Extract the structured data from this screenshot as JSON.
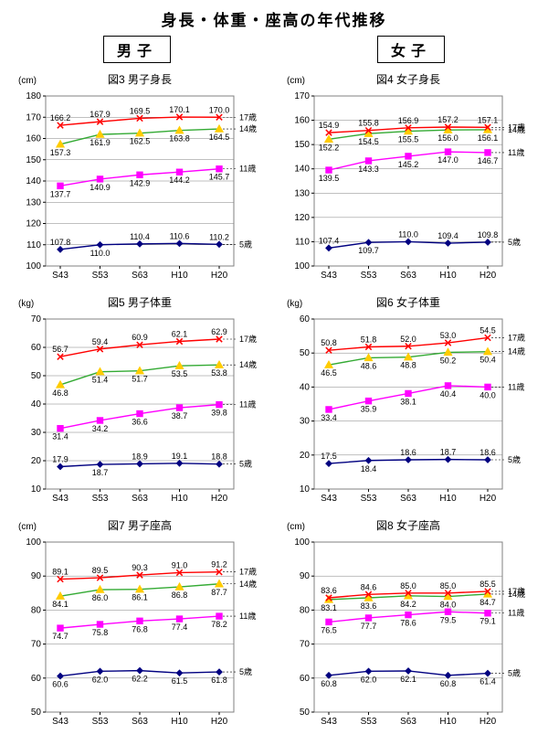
{
  "main_title": "身長・体重・座高の年代推移",
  "gender_labels": {
    "male": "男子",
    "female": "女子"
  },
  "x_categories": [
    "S43",
    "S53",
    "S63",
    "H10",
    "H20"
  ],
  "series_order": [
    "age5",
    "age11",
    "age14",
    "age17"
  ],
  "series_style": {
    "age5": {
      "color": "#000080",
      "marker": "diamond",
      "label": "5歳"
    },
    "age11": {
      "color": "#ff00ff",
      "marker": "square",
      "label": "11歳"
    },
    "age14": {
      "color": "#ffcc00",
      "marker": "triangle",
      "label": "14歳",
      "line_color": "#33aa33"
    },
    "age17": {
      "color": "#ff0000",
      "marker": "x",
      "label": "17歳"
    }
  },
  "grid_color": "#000000",
  "border_color": "#808080",
  "background_color": "#ffffff",
  "label_fontsize": 9,
  "tick_fontsize": 10,
  "title_fontsize": 12,
  "charts": [
    {
      "id": "m_height",
      "title": "図3 男子身長",
      "unit": "(cm)",
      "ymin": 100,
      "ymax": 180,
      "ystep": 10,
      "series": {
        "age5": [
          107.8,
          110.0,
          110.4,
          110.6,
          110.2
        ],
        "age11": [
          137.7,
          140.9,
          142.9,
          144.2,
          145.7
        ],
        "age14": [
          157.3,
          161.9,
          162.5,
          163.8,
          164.5
        ],
        "age17": [
          166.2,
          167.9,
          169.5,
          170.1,
          170.0
        ]
      },
      "data_label_pos": {
        "age5": [
          "above",
          "below",
          "above",
          "above",
          "above"
        ],
        "age11": [
          "below",
          "below",
          "below",
          "below",
          "below"
        ],
        "age14": [
          "below",
          "below",
          "below",
          "below",
          "below"
        ],
        "age17": [
          "above",
          "above",
          "above",
          "above",
          "above"
        ]
      }
    },
    {
      "id": "f_height",
      "title": "図4 女子身長",
      "unit": "(cm)",
      "ymin": 100,
      "ymax": 170,
      "ystep": 10,
      "series": {
        "age5": [
          107.4,
          109.7,
          110.0,
          109.4,
          109.8
        ],
        "age11": [
          139.5,
          143.3,
          145.2,
          147.0,
          146.7
        ],
        "age14": [
          152.2,
          154.5,
          155.5,
          156.0,
          156.1
        ],
        "age17": [
          154.9,
          155.8,
          156.9,
          157.2,
          157.1
        ]
      },
      "data_label_pos": {
        "age5": [
          "above",
          "below",
          "above",
          "above",
          "above"
        ],
        "age11": [
          "below",
          "below",
          "below",
          "below",
          "below"
        ],
        "age14": [
          "below",
          "below",
          "below",
          "below",
          "below"
        ],
        "age17": [
          "above",
          "above",
          "above",
          "above",
          "above"
        ]
      }
    },
    {
      "id": "m_weight",
      "title": "図5 男子体重",
      "unit": "(kg)",
      "ymin": 10,
      "ymax": 70,
      "ystep": 10,
      "series": {
        "age5": [
          17.9,
          18.7,
          18.9,
          19.1,
          18.8
        ],
        "age11": [
          31.4,
          34.2,
          36.6,
          38.7,
          39.8
        ],
        "age14": [
          46.8,
          51.4,
          51.7,
          53.5,
          53.8
        ],
        "age17": [
          56.7,
          59.4,
          60.9,
          62.1,
          62.9
        ]
      },
      "data_label_pos": {
        "age5": [
          "above",
          "below",
          "above",
          "above",
          "above"
        ],
        "age11": [
          "below",
          "below",
          "below",
          "below",
          "below"
        ],
        "age14": [
          "below",
          "below",
          "below",
          "below",
          "below"
        ],
        "age17": [
          "above",
          "above",
          "above",
          "above",
          "above"
        ]
      }
    },
    {
      "id": "f_weight",
      "title": "図6 女子体重",
      "unit": "(kg)",
      "ymin": 10,
      "ymax": 60,
      "ystep": 10,
      "series": {
        "age5": [
          17.5,
          18.4,
          18.6,
          18.7,
          18.6
        ],
        "age11": [
          33.4,
          35.9,
          38.1,
          40.4,
          40.0
        ],
        "age14": [
          46.5,
          48.6,
          48.8,
          50.2,
          50.4
        ],
        "age17": [
          50.8,
          51.8,
          52.0,
          53.0,
          54.5
        ]
      },
      "data_label_pos": {
        "age5": [
          "above",
          "below",
          "above",
          "above",
          "above"
        ],
        "age11": [
          "below",
          "below",
          "below",
          "below",
          "below"
        ],
        "age14": [
          "below",
          "below",
          "below",
          "below",
          "below"
        ],
        "age17": [
          "above",
          "above",
          "above",
          "above",
          "above"
        ]
      }
    },
    {
      "id": "m_sit",
      "title": "図7 男子座高",
      "unit": "(cm)",
      "ymin": 50,
      "ymax": 100,
      "ystep": 10,
      "series": {
        "age5": [
          60.6,
          62.0,
          62.2,
          61.5,
          61.8
        ],
        "age11": [
          74.7,
          75.8,
          76.8,
          77.4,
          78.2
        ],
        "age14": [
          84.1,
          86.0,
          86.1,
          86.8,
          87.7
        ],
        "age17": [
          89.1,
          89.5,
          90.3,
          91.0,
          91.2
        ]
      },
      "data_label_pos": {
        "age5": [
          "below",
          "below",
          "below",
          "below",
          "below"
        ],
        "age11": [
          "below",
          "below",
          "below",
          "below",
          "below"
        ],
        "age14": [
          "below",
          "below",
          "below",
          "below",
          "below"
        ],
        "age17": [
          "above",
          "above",
          "above",
          "above",
          "above"
        ]
      }
    },
    {
      "id": "f_sit",
      "title": "図8 女子座高",
      "unit": "(cm)",
      "ymin": 50,
      "ymax": 100,
      "ystep": 10,
      "series": {
        "age5": [
          60.8,
          62.0,
          62.1,
          60.8,
          61.4
        ],
        "age11": [
          76.5,
          77.7,
          78.6,
          79.5,
          79.1
        ],
        "age14": [
          83.1,
          83.6,
          84.2,
          84.0,
          84.7
        ],
        "age17": [
          83.6,
          84.6,
          85.0,
          85.0,
          85.5
        ]
      },
      "data_label_pos": {
        "age5": [
          "below",
          "below",
          "below",
          "below",
          "below"
        ],
        "age11": [
          "below",
          "below",
          "below",
          "below",
          "below"
        ],
        "age14": [
          "below",
          "below",
          "below",
          "below",
          "below"
        ],
        "age17": [
          "above",
          "above",
          "above",
          "above",
          "above"
        ]
      }
    }
  ]
}
